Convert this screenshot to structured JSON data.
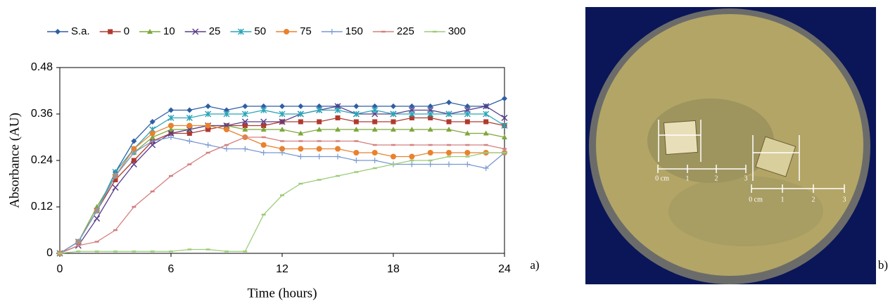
{
  "chart_data": {
    "type": "line",
    "x_label": "Time (hours)",
    "y_label": "Absorbance (AU)",
    "x": [
      0,
      1,
      2,
      3,
      4,
      5,
      6,
      7,
      8,
      9,
      10,
      11,
      12,
      13,
      14,
      15,
      16,
      17,
      18,
      19,
      20,
      21,
      22,
      23,
      24
    ],
    "xlim": [
      0,
      24
    ],
    "xticks": [
      0,
      6,
      12,
      18,
      24
    ],
    "ylim": [
      0,
      0.48
    ],
    "yticks": [
      0,
      0.12,
      0.24,
      0.36,
      0.48
    ],
    "legend": "top",
    "series": [
      {
        "name": "S.a.",
        "color": "#2e5fa3",
        "marker": "diamond",
        "values": [
          0,
          0.03,
          0.11,
          0.21,
          0.29,
          0.34,
          0.37,
          0.37,
          0.38,
          0.37,
          0.38,
          0.38,
          0.38,
          0.38,
          0.38,
          0.38,
          0.38,
          0.38,
          0.38,
          0.38,
          0.38,
          0.39,
          0.38,
          0.38,
          0.4
        ]
      },
      {
        "name": "0",
        "color": "#b03a2e",
        "marker": "square",
        "values": [
          0,
          0.03,
          0.11,
          0.19,
          0.24,
          0.29,
          0.31,
          0.31,
          0.32,
          0.33,
          0.33,
          0.33,
          0.34,
          0.34,
          0.34,
          0.35,
          0.34,
          0.34,
          0.34,
          0.35,
          0.35,
          0.34,
          0.34,
          0.34,
          0.33
        ]
      },
      {
        "name": "10",
        "color": "#7ea83a",
        "marker": "triangle",
        "values": [
          0,
          0.03,
          0.12,
          0.2,
          0.26,
          0.3,
          0.32,
          0.32,
          0.33,
          0.33,
          0.32,
          0.32,
          0.32,
          0.31,
          0.32,
          0.32,
          0.32,
          0.32,
          0.32,
          0.32,
          0.32,
          0.32,
          0.31,
          0.31,
          0.3
        ]
      },
      {
        "name": "25",
        "color": "#5a3d8a",
        "marker": "cross",
        "values": [
          0,
          0.02,
          0.09,
          0.17,
          0.23,
          0.28,
          0.31,
          0.32,
          0.33,
          0.33,
          0.34,
          0.34,
          0.34,
          0.36,
          0.37,
          0.38,
          0.36,
          0.36,
          0.36,
          0.37,
          0.37,
          0.36,
          0.37,
          0.38,
          0.35
        ]
      },
      {
        "name": "50",
        "color": "#2aa5b8",
        "marker": "star",
        "values": [
          0,
          0.03,
          0.11,
          0.21,
          0.27,
          0.32,
          0.35,
          0.35,
          0.36,
          0.36,
          0.36,
          0.37,
          0.36,
          0.36,
          0.37,
          0.37,
          0.36,
          0.37,
          0.36,
          0.36,
          0.36,
          0.36,
          0.36,
          0.36,
          0.33
        ]
      },
      {
        "name": "75",
        "color": "#e8822e",
        "marker": "circle",
        "values": [
          0,
          0.03,
          0.11,
          0.2,
          0.27,
          0.31,
          0.33,
          0.33,
          0.33,
          0.32,
          0.3,
          0.28,
          0.27,
          0.27,
          0.27,
          0.27,
          0.26,
          0.26,
          0.25,
          0.25,
          0.26,
          0.26,
          0.26,
          0.26,
          0.26
        ]
      },
      {
        "name": "150",
        "color": "#7a9ad0",
        "marker": "plus",
        "values": [
          0,
          0.03,
          0.11,
          0.2,
          0.26,
          0.29,
          0.3,
          0.29,
          0.28,
          0.27,
          0.27,
          0.26,
          0.26,
          0.25,
          0.25,
          0.25,
          0.24,
          0.24,
          0.23,
          0.23,
          0.23,
          0.23,
          0.23,
          0.22,
          0.26
        ]
      },
      {
        "name": "225",
        "color": "#d48080",
        "marker": "dash",
        "values": [
          0,
          0.02,
          0.03,
          0.06,
          0.12,
          0.16,
          0.2,
          0.23,
          0.26,
          0.28,
          0.3,
          0.3,
          0.29,
          0.29,
          0.29,
          0.29,
          0.29,
          0.28,
          0.28,
          0.28,
          0.28,
          0.28,
          0.28,
          0.28,
          0.27
        ]
      },
      {
        "name": "300",
        "color": "#9ccc78",
        "marker": "dash",
        "values": [
          0,
          0.005,
          0.005,
          0.005,
          0.005,
          0.005,
          0.005,
          0.01,
          0.01,
          0.005,
          0.005,
          0.1,
          0.15,
          0.18,
          0.19,
          0.2,
          0.21,
          0.22,
          0.23,
          0.24,
          0.24,
          0.25,
          0.25,
          0.26,
          0.26
        ]
      }
    ]
  },
  "panels": {
    "a": "a)",
    "b": "b)"
  },
  "photo": {
    "scale_labels": [
      "0 cm",
      "1",
      "2",
      "3"
    ]
  }
}
